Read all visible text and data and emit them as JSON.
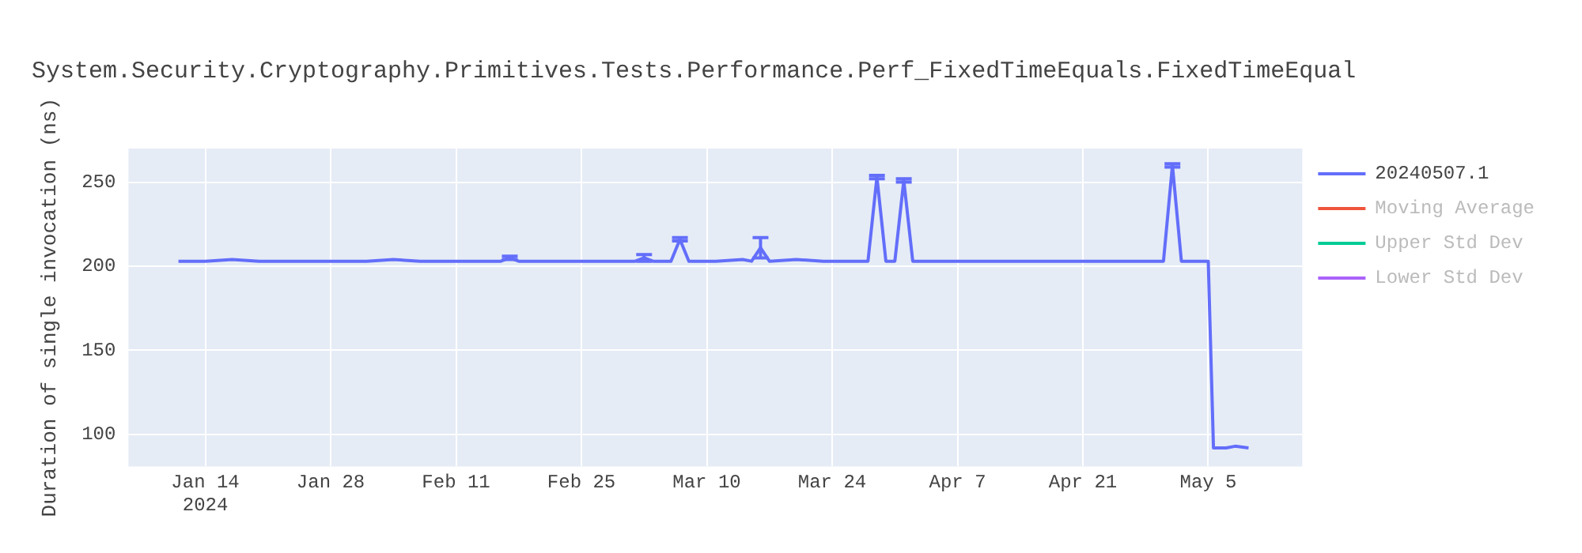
{
  "chart_data": {
    "type": "line",
    "title": "System.Security.Cryptography.Primitives.Tests.Performance.Perf_FixedTimeEquals.FixedTimeEqual",
    "ylabel": "Duration of single invocation (ns)",
    "xlim": [
      "2024-01-05T10:00",
      "2024-05-15T12:00"
    ],
    "xticks": [
      {
        "value": "2024-01-14",
        "label": "Jan 14\n2024"
      },
      {
        "value": "2024-01-28",
        "label": "Jan 28"
      },
      {
        "value": "2024-02-11",
        "label": "Feb 11"
      },
      {
        "value": "2024-02-25",
        "label": "Feb 25"
      },
      {
        "value": "2024-03-10",
        "label": "Mar 10"
      },
      {
        "value": "2024-03-24",
        "label": "Mar 24"
      },
      {
        "value": "2024-04-07",
        "label": "Apr 7"
      },
      {
        "value": "2024-04-21",
        "label": "Apr 21"
      },
      {
        "value": "2024-05-05",
        "label": "May 5"
      }
    ],
    "ylim": [
      81,
      270
    ],
    "yticks": [
      100,
      150,
      200,
      250
    ],
    "grid": true,
    "legend": "top right",
    "marker": "none",
    "line_style": "solid",
    "series": [
      {
        "name": "20240507.1",
        "color": "#636efa",
        "x": [
          "2024-01-11",
          "2024-01-14",
          "2024-01-17",
          "2024-01-20",
          "2024-01-23",
          "2024-01-26",
          "2024-01-29",
          "2024-02-01",
          "2024-02-04",
          "2024-02-07",
          "2024-02-10",
          "2024-02-13",
          "2024-02-16",
          "2024-02-17",
          "2024-02-18",
          "2024-02-21",
          "2024-02-24",
          "2024-02-27",
          "2024-03-01",
          "2024-03-02",
          "2024-03-03",
          "2024-03-04",
          "2024-03-06",
          "2024-03-07",
          "2024-03-08",
          "2024-03-11",
          "2024-03-14",
          "2024-03-15",
          "2024-03-16",
          "2024-03-17",
          "2024-03-20",
          "2024-03-23",
          "2024-03-26",
          "2024-03-28",
          "2024-03-29",
          "2024-03-30",
          "2024-03-31",
          "2024-04-01",
          "2024-04-02",
          "2024-04-05",
          "2024-04-08",
          "2024-04-11",
          "2024-04-14",
          "2024-04-17",
          "2024-04-20",
          "2024-04-23",
          "2024-04-26",
          "2024-04-29",
          "2024-04-30",
          "2024-05-01",
          "2024-05-02",
          "2024-05-03",
          "2024-05-05",
          "2024-05-05T14:00",
          "2024-05-07",
          "2024-05-08",
          "2024-05-09T12:00"
        ],
        "values": [
          203,
          203,
          204,
          203,
          203,
          203,
          203,
          203,
          204,
          203,
          203,
          203,
          203,
          205,
          203,
          203,
          203,
          203,
          203,
          203,
          205,
          203,
          203,
          216,
          203,
          203,
          204,
          203,
          211,
          203,
          204,
          203,
          203,
          203,
          253,
          203,
          203,
          251,
          203,
          203,
          203,
          203,
          203,
          203,
          203,
          203,
          203,
          203,
          203,
          260,
          203,
          203,
          203,
          92,
          92,
          93,
          92
        ],
        "errors": [
          null,
          null,
          null,
          null,
          null,
          null,
          null,
          null,
          null,
          null,
          null,
          null,
          null,
          1,
          null,
          null,
          null,
          null,
          null,
          null,
          2,
          null,
          null,
          1,
          null,
          null,
          null,
          null,
          6,
          null,
          null,
          null,
          null,
          null,
          1,
          null,
          null,
          1,
          null,
          null,
          null,
          null,
          null,
          null,
          null,
          null,
          null,
          null,
          null,
          1,
          null,
          null,
          null,
          null,
          null,
          null,
          null
        ]
      },
      {
        "name": "Moving Average",
        "color": "#ef553b"
      },
      {
        "name": "Upper Std Dev",
        "color": "#00cc96"
      },
      {
        "name": "Lower Std Dev",
        "color": "#ab63fa"
      }
    ]
  }
}
